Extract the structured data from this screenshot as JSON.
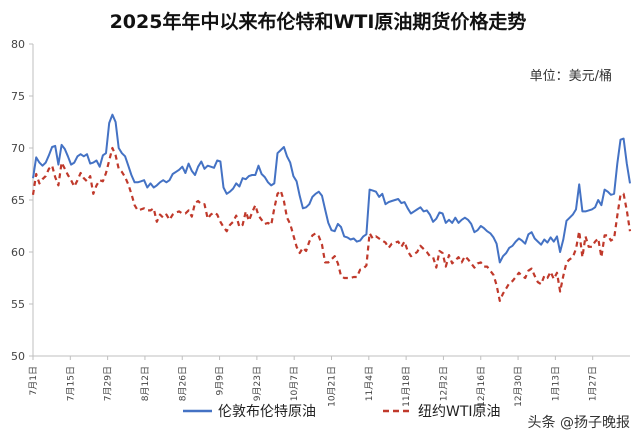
{
  "chart_data": {
    "type": "line",
    "title": "2025年年中以来布伦特和WTI原油期货价格走势",
    "unit_note": "单位：美元/桶",
    "watermark": "头条 @扬子晚报",
    "ylim": [
      50,
      80
    ],
    "yticks": [
      "50",
      "55",
      "60",
      "65",
      "70",
      "75",
      "80"
    ],
    "xticks": [
      "7月1日",
      "7月15日",
      "7月29日",
      "8月12日",
      "8月26日",
      "9月9日",
      "9月23日",
      "10月7日",
      "10月21日",
      "11月4日",
      "11月18日",
      "12月2日",
      "12月16日",
      "12月30日",
      "1月13日",
      "1月27日"
    ],
    "grid": false,
    "legend_position": "bottom",
    "colors": {
      "brent": "#4472C4",
      "wti": "#C0392B"
    },
    "series": [
      {
        "name": "伦敦布伦特原油",
        "key": "brent",
        "style": "solid",
        "values": [
          67.1,
          69.1,
          68.6,
          68.3,
          68.6,
          69.3,
          70.1,
          70.2,
          68.4,
          70.3,
          69.9,
          69.2,
          68.4,
          68.6,
          69.2,
          69.4,
          69.2,
          69.4,
          68.5,
          68.6,
          68.8,
          68.2,
          69.3,
          69.5,
          72.4,
          73.2,
          72.5,
          70.0,
          69.5,
          69.2,
          68.3,
          67.4,
          66.7,
          66.7,
          66.8,
          66.9,
          66.2,
          66.6,
          66.2,
          66.4,
          66.7,
          66.9,
          66.7,
          66.9,
          67.5,
          67.7,
          67.9,
          68.2,
          67.6,
          68.5,
          67.8,
          67.4,
          68.2,
          68.7,
          68.0,
          68.3,
          68.2,
          68.1,
          68.8,
          68.7,
          66.2,
          65.6,
          65.8,
          66.1,
          66.6,
          66.3,
          67.1,
          67.0,
          67.3,
          67.4,
          67.4,
          68.3,
          67.5,
          67.2,
          66.7,
          66.4,
          66.6,
          69.5,
          69.8,
          70.1,
          69.2,
          68.6,
          67.3,
          66.8,
          65.4,
          64.2,
          64.3,
          64.6,
          65.3,
          65.6,
          65.8,
          65.4,
          64.1,
          62.8,
          62.1,
          62.0,
          62.7,
          62.4,
          61.5,
          61.4,
          61.2,
          61.3,
          61.0,
          61.1,
          61.5,
          61.7,
          66.0,
          65.9,
          65.8,
          65.3,
          65.6,
          64.6,
          64.8,
          64.9,
          65.0,
          65.1,
          64.7,
          64.8,
          64.2,
          63.7,
          63.9,
          64.1,
          64.3,
          63.9,
          64.0,
          63.6,
          62.9,
          63.2,
          63.8,
          63.7,
          62.8,
          63.1,
          62.8,
          63.3,
          62.8,
          63.1,
          63.3,
          63.1,
          62.7,
          61.9,
          62.1,
          62.5,
          62.3,
          62.0,
          61.8,
          61.4,
          60.8,
          59.0,
          59.6,
          59.9,
          60.4,
          60.6,
          61.0,
          61.3,
          61.1,
          60.8,
          61.7,
          61.9,
          61.3,
          61.0,
          60.7,
          61.2,
          60.9,
          61.4,
          61.0,
          61.5,
          60.0,
          61.2,
          63.0,
          63.3,
          63.6,
          64.1,
          66.5,
          63.9,
          63.9,
          64.0,
          64.1,
          64.3,
          65.0,
          64.5,
          66.0,
          65.8,
          65.5,
          65.6,
          68.5,
          70.8,
          70.9,
          68.5,
          66.6
        ]
      },
      {
        "name": "纽约WTI原油",
        "key": "wti",
        "style": "dashed",
        "values": [
          65.5,
          67.5,
          66.6,
          67.0,
          67.3,
          68.0,
          68.3,
          67.2,
          66.4,
          68.6,
          68.0,
          67.4,
          66.9,
          66.3,
          66.9,
          67.6,
          67.1,
          66.8,
          67.3,
          65.6,
          66.4,
          66.9,
          66.8,
          67.6,
          68.8,
          70.0,
          69.3,
          68.0,
          67.7,
          67.2,
          66.5,
          65.6,
          64.5,
          64.0,
          64.1,
          64.2,
          64.0,
          64.0,
          64.2,
          62.9,
          63.6,
          63.3,
          63.6,
          63.1,
          63.6,
          63.8,
          63.9,
          63.7,
          63.7,
          64.0,
          63.4,
          64.7,
          64.9,
          64.6,
          64.6,
          63.2,
          63.6,
          63.8,
          63.6,
          62.9,
          62.4,
          62.0,
          62.6,
          62.9,
          63.5,
          62.4,
          62.6,
          63.9,
          63.0,
          63.8,
          64.5,
          63.5,
          63.1,
          62.7,
          62.8,
          62.6,
          64.2,
          65.6,
          65.9,
          64.9,
          63.3,
          62.7,
          61.6,
          60.5,
          59.9,
          60.4,
          60.1,
          61.0,
          61.6,
          61.8,
          61.5,
          60.7,
          59.0,
          59.0,
          59.3,
          59.6,
          58.9,
          57.7,
          57.5,
          57.5,
          57.5,
          57.6,
          57.6,
          58.3,
          58.4,
          58.7,
          61.8,
          61.3,
          61.5,
          61.3,
          61.1,
          60.9,
          60.4,
          60.8,
          60.9,
          61.0,
          60.5,
          61.0,
          60.1,
          59.6,
          59.8,
          60.0,
          60.6,
          60.3,
          60.0,
          59.6,
          59.5,
          58.5,
          60.1,
          59.9,
          58.6,
          59.7,
          58.9,
          59.2,
          59.5,
          59.0,
          59.6,
          59.3,
          58.9,
          58.5,
          58.9,
          59.0,
          58.6,
          58.6,
          58.2,
          57.8,
          56.8,
          55.3,
          56.0,
          56.5,
          57.0,
          57.2,
          57.6,
          58.0,
          57.7,
          57.5,
          58.2,
          58.4,
          57.7,
          57.1,
          56.9,
          57.7,
          57.5,
          58.1,
          57.4,
          58.0,
          56.2,
          57.7,
          59.0,
          59.3,
          59.5,
          60.3,
          62.0,
          59.5,
          61.5,
          60.5,
          60.5,
          61.0,
          61.3,
          59.5,
          61.6,
          61.6,
          61.1,
          61.3,
          63.5,
          65.5,
          65.6,
          64.0,
          62.0
        ]
      }
    ]
  }
}
